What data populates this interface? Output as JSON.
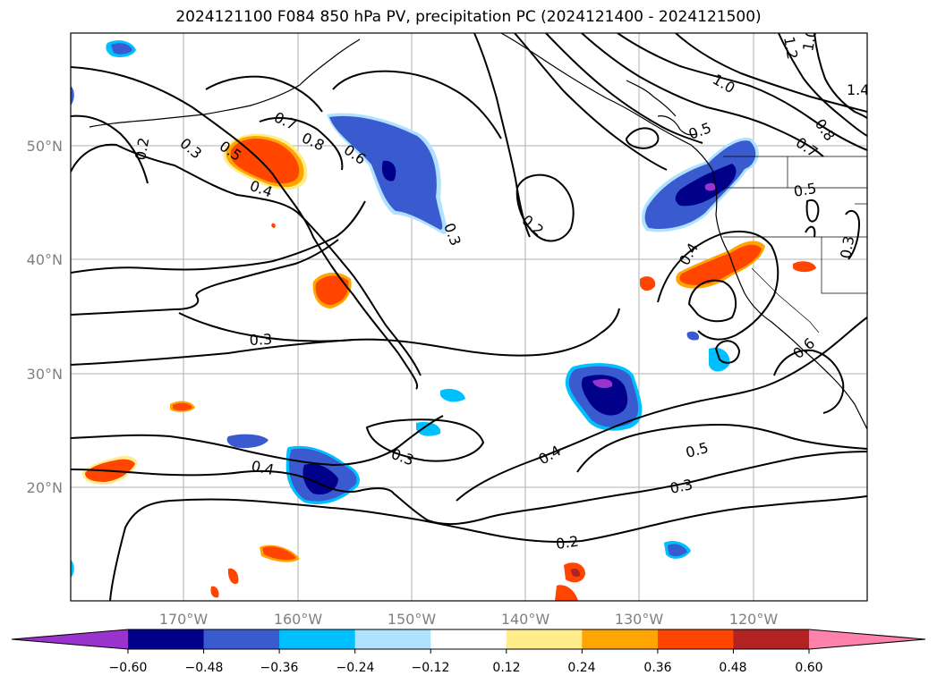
{
  "title": "2024121100 F084 850 hPa PV, precipitation PC (2024121400 - 2024121500)",
  "axes": {
    "lon_ticks": [
      "170°W",
      "160°W",
      "150°W",
      "140°W",
      "130°W",
      "120°W"
    ],
    "lat_ticks": [
      "50°N",
      "40°N",
      "30°N",
      "20°N"
    ],
    "grid": true
  },
  "colorbar": {
    "ticks": [
      "−0.60",
      "−0.48",
      "−0.36",
      "−0.24",
      "−0.12",
      "0.12",
      "0.24",
      "0.36",
      "0.48",
      "0.60"
    ],
    "colors": [
      "#9a32cd",
      "#00008b",
      "#3a5bd0",
      "#00bfff",
      "#b0e2ff",
      "#ffffff",
      "#ffec8b",
      "#ffa500",
      "#ff4500",
      "#b22222",
      "#ff82ab"
    ],
    "extend": "both"
  },
  "contour_labels": [
    "0.2",
    "0.3",
    "0.5",
    "0.4",
    "0.7",
    "0.8",
    "0.6",
    "0.3",
    "0.2",
    "1.0",
    "1.2",
    "1.0",
    "1.4",
    "0.8",
    "0.7",
    "0.5",
    "0.5",
    "0.4",
    "0.3",
    "0.6",
    "0.3",
    "0.4",
    "0.3",
    "0.4",
    "0.5",
    "0.3",
    "0.2"
  ]
}
